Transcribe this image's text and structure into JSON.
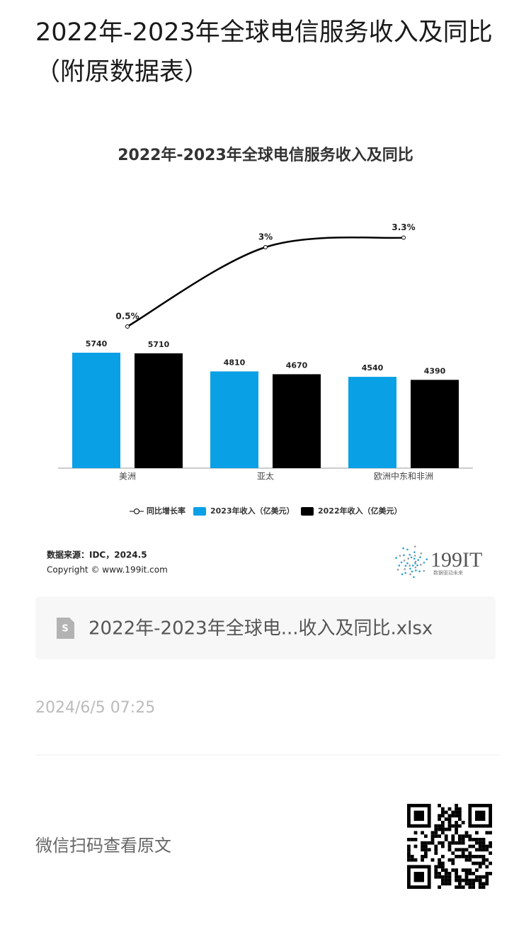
{
  "header": {
    "title": "2022年-2023年全球电信服务收入及同比（附原数据表）"
  },
  "chart_data": {
    "type": "bar",
    "title": "2022年-2023年全球电信服务收入及同比",
    "categories": [
      "美洲",
      "亚太",
      "欧洲中东和非洲"
    ],
    "series": [
      {
        "name": "同比增长率",
        "type": "line",
        "color": "#000000",
        "values": [
          0.5,
          3,
          3.3
        ],
        "value_labels": [
          "0.5%",
          "3%",
          "3.3%"
        ]
      },
      {
        "name": "2023年收入（亿美元）",
        "color": "#0aa0e6",
        "values": [
          5740,
          4810,
          4540
        ]
      },
      {
        "name": "2022年收入（亿美元）",
        "color": "#000000",
        "values": [
          5710,
          4670,
          4390
        ]
      }
    ]
  },
  "chart_footer": {
    "source": "数据来源：IDC，2024.5",
    "copyright": "Copyright © www.199it.com",
    "logo": "199IT",
    "slogan": "数据驱动未来"
  },
  "file": {
    "name": "2022年-2023年全球电...收入及同比.xlsx"
  },
  "date": "2024/6/5 07:25",
  "footer": {
    "qr_text": "微信扫码查看原文"
  }
}
